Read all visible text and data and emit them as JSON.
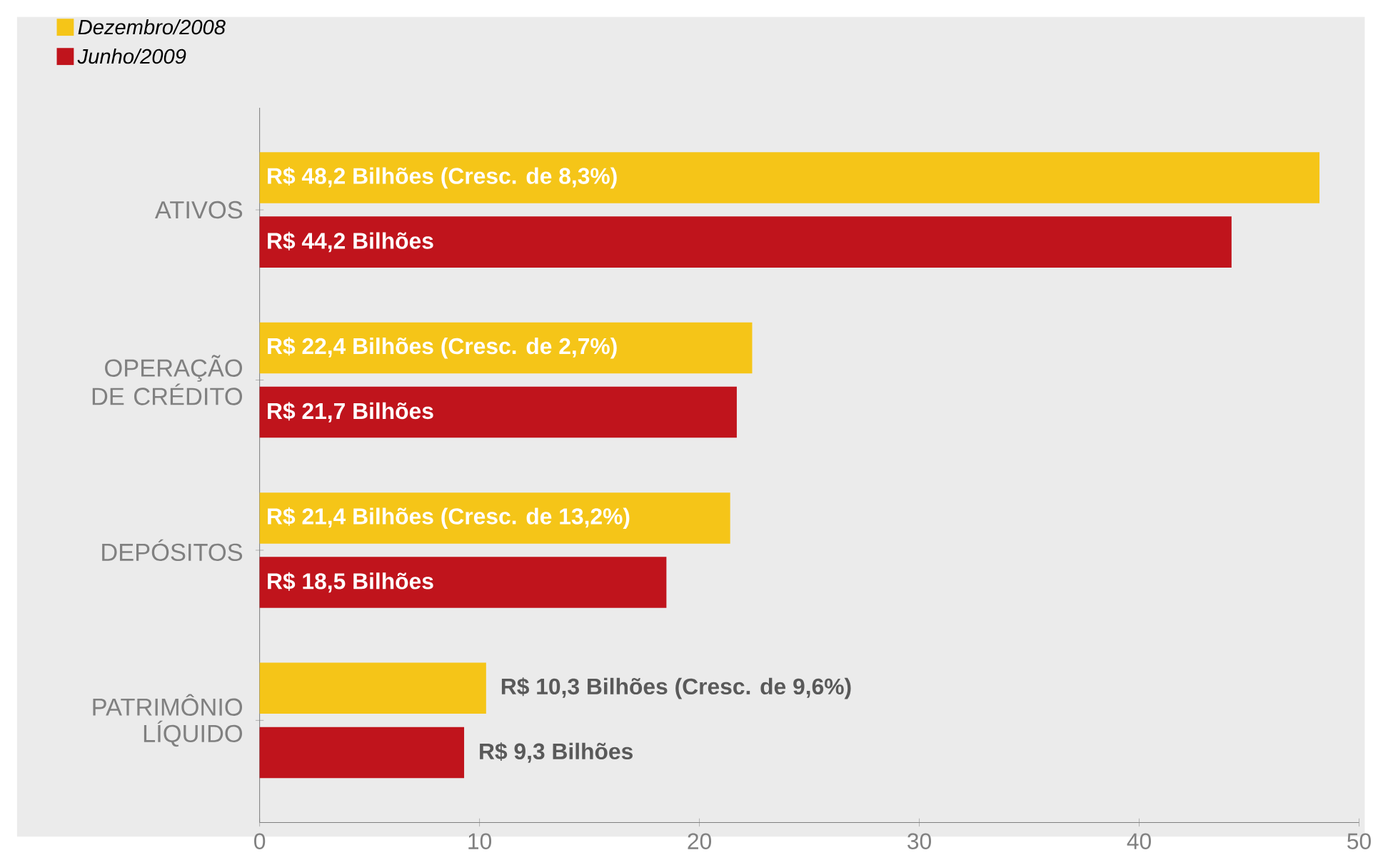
{
  "chart_data": {
    "type": "bar",
    "orientation": "horizontal",
    "categories": [
      "ATIVOS",
      "OPERAÇÃO DE CRÉDITO",
      "DEPÓSITOS",
      "PATRIMÔNIO LÍQUIDO"
    ],
    "series": [
      {
        "name": "Dezembro/2008",
        "color": "#f5c518",
        "values": [
          48.2,
          22.4,
          21.4,
          10.3
        ],
        "value_labels": [
          "R$ 48,2 Bilhões (Cresc. de 8,3%)",
          "R$ 22,4 Bilhões (Cresc. de 2,7%)",
          "R$ 21,4 Bilhões (Cresc. de 13,2%)",
          "R$ 10,3 Bilhões (Cresc. de 9,6%)"
        ]
      },
      {
        "name": "Junho/2009",
        "color": "#c0141c",
        "values": [
          44.2,
          21.7,
          18.5,
          9.3
        ],
        "value_labels": [
          "R$ 44,2 Bilhões",
          "R$ 21,7 Bilhões",
          "R$ 18,5 Bilhões",
          "R$ 9,3 Bilhões"
        ]
      }
    ],
    "xlim": [
      0,
      50
    ],
    "xticks": [
      0,
      10,
      20,
      30,
      40,
      50
    ],
    "legend": "top left",
    "grid": false
  }
}
